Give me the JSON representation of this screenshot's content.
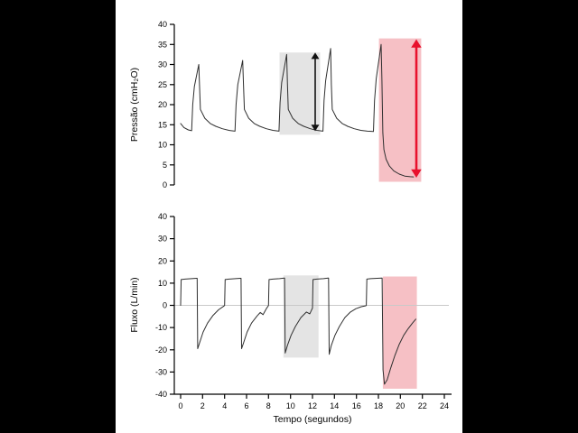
{
  "colors": {
    "background": "#000000",
    "panel": "#ffffff",
    "trace": "#2f2f2f",
    "axis": "#000000",
    "zero_line": "#c9c9c9",
    "gray_highlight": "#e4e4e4",
    "pink_highlight": "#f6c0c5",
    "red_accent": "#e8112d",
    "black_accent": "#111111"
  },
  "chart_data": [
    {
      "type": "line",
      "name": "pressure-plot",
      "title": "",
      "ylabel": "Pressão (cmH₂O)",
      "xlabel": "",
      "ylim": [
        0,
        40
      ],
      "yticks": [
        0,
        5,
        10,
        15,
        20,
        25,
        30,
        35,
        40
      ],
      "xlim": [
        0,
        24
      ],
      "xticks": null,
      "zero_line": false,
      "grid": false,
      "highlights": [
        {
          "color": "#e4e4e4",
          "x0": 9.0,
          "x1": 12.7,
          "y0": 12.5,
          "y1": 33.0
        },
        {
          "color": "#f6c0c5",
          "x0": 18.05,
          "x1": 21.9,
          "y0": 0.8,
          "y1": 36.5
        }
      ],
      "arrows": [
        {
          "color": "#111111",
          "x": 12.25,
          "y0": 13.4,
          "y1": 33.0,
          "width": 1.6
        },
        {
          "color": "#e8112d",
          "x": 21.45,
          "y0": 1.8,
          "y1": 36.3,
          "width": 2.6
        }
      ],
      "series": [
        {
          "name": "pressao",
          "points": [
            [
              0,
              15.3
            ],
            [
              0.3,
              14.3
            ],
            [
              0.7,
              13.7
            ],
            [
              1.0,
              13.5
            ],
            [
              1.1,
              20
            ],
            [
              1.25,
              24.5
            ],
            [
              1.65,
              30
            ],
            [
              1.72,
              25
            ],
            [
              1.8,
              18.8
            ],
            [
              2.2,
              16.6
            ],
            [
              2.7,
              15.3
            ],
            [
              3.2,
              14.6
            ],
            [
              3.8,
              14.0
            ],
            [
              4.4,
              13.6
            ],
            [
              4.95,
              13.4
            ],
            [
              5.05,
              20
            ],
            [
              5.2,
              25
            ],
            [
              5.65,
              31
            ],
            [
              5.72,
              25
            ],
            [
              5.8,
              18.8
            ],
            [
              6.2,
              16.6
            ],
            [
              6.7,
              15.3
            ],
            [
              7.2,
              14.6
            ],
            [
              7.8,
              14.0
            ],
            [
              8.4,
              13.6
            ],
            [
              8.95,
              13.4
            ],
            [
              9.05,
              20.5
            ],
            [
              9.2,
              25.5
            ],
            [
              9.65,
              32.5
            ],
            [
              9.72,
              25
            ],
            [
              9.8,
              18.8
            ],
            [
              10.2,
              16.6
            ],
            [
              10.7,
              15.3
            ],
            [
              11.2,
              14.6
            ],
            [
              11.8,
              14.0
            ],
            [
              12.4,
              13.6
            ],
            [
              12.95,
              13.4
            ],
            [
              13.05,
              21
            ],
            [
              13.2,
              26
            ],
            [
              13.65,
              34
            ],
            [
              13.72,
              25
            ],
            [
              13.8,
              18.8
            ],
            [
              14.2,
              16.6
            ],
            [
              14.7,
              15.3
            ],
            [
              15.2,
              14.6
            ],
            [
              15.8,
              14.0
            ],
            [
              16.4,
              13.6
            ],
            [
              17.0,
              13.4
            ],
            [
              17.55,
              13.3
            ],
            [
              17.65,
              21
            ],
            [
              17.8,
              26.5
            ],
            [
              18.25,
              35
            ],
            [
              18.32,
              26
            ],
            [
              18.4,
              13
            ],
            [
              18.5,
              8.8
            ],
            [
              18.7,
              6.4
            ],
            [
              19.0,
              4.7
            ],
            [
              19.4,
              3.5
            ],
            [
              19.9,
              2.7
            ],
            [
              20.4,
              2.2
            ],
            [
              20.9,
              2.05
            ],
            [
              21.2,
              2.0
            ]
          ]
        }
      ]
    },
    {
      "type": "line",
      "name": "flow-plot",
      "title": "",
      "ylabel": "Fluxo (L/min)",
      "xlabel": "Tempo (segundos)",
      "ylim": [
        -40,
        40
      ],
      "yticks": [
        -40,
        -30,
        -20,
        -10,
        0,
        10,
        20,
        30,
        40
      ],
      "xlim": [
        0,
        24
      ],
      "xticks": [
        0,
        2,
        4,
        6,
        8,
        10,
        12,
        14,
        16,
        18,
        20,
        22,
        24
      ],
      "zero_line": true,
      "grid": false,
      "highlights": [
        {
          "color": "#e4e4e4",
          "x0": 9.35,
          "x1": 12.55,
          "y0": -23.5,
          "y1": 13.5
        },
        {
          "color": "#f6c0c5",
          "x0": 18.4,
          "x1": 21.5,
          "y0": -37.5,
          "y1": 13.0
        }
      ],
      "arrows": [],
      "series": [
        {
          "name": "fluxo",
          "points": [
            [
              0,
              0
            ],
            [
              0.05,
              11.6
            ],
            [
              0.4,
              11.8
            ],
            [
              1.0,
              12.0
            ],
            [
              1.45,
              12.2
            ],
            [
              1.5,
              12.2
            ],
            [
              1.55,
              -19.5
            ],
            [
              1.75,
              -16.5
            ],
            [
              2.05,
              -12
            ],
            [
              2.45,
              -8
            ],
            [
              2.95,
              -4.5
            ],
            [
              3.45,
              -2
            ],
            [
              3.95,
              -0.3
            ],
            [
              4.0,
              0
            ],
            [
              4.05,
              11.6
            ],
            [
              4.4,
              11.8
            ],
            [
              5.0,
              12.0
            ],
            [
              5.45,
              12.2
            ],
            [
              5.5,
              12.2
            ],
            [
              5.55,
              -19.5
            ],
            [
              5.75,
              -16.5
            ],
            [
              6.05,
              -12
            ],
            [
              6.45,
              -8
            ],
            [
              6.95,
              -4.8
            ],
            [
              7.25,
              -3.2
            ],
            [
              7.5,
              -4.2
            ],
            [
              7.8,
              -1.5
            ],
            [
              7.98,
              -0.2
            ],
            [
              8.0,
              0
            ],
            [
              8.05,
              11.6
            ],
            [
              8.4,
              11.8
            ],
            [
              9.0,
              12.0
            ],
            [
              9.42,
              12.3
            ],
            [
              9.46,
              12.3
            ],
            [
              9.52,
              -21.5
            ],
            [
              9.72,
              -18
            ],
            [
              10.05,
              -13.5
            ],
            [
              10.45,
              -9.5
            ],
            [
              10.95,
              -5.5
            ],
            [
              11.45,
              -3
            ],
            [
              11.75,
              -3.8
            ],
            [
              12.0,
              -1.2
            ],
            [
              12.05,
              11.6
            ],
            [
              12.4,
              11.8
            ],
            [
              13.0,
              12.0
            ],
            [
              13.42,
              12.3
            ],
            [
              13.46,
              12.3
            ],
            [
              13.52,
              -22
            ],
            [
              13.72,
              -18
            ],
            [
              14.05,
              -13.5
            ],
            [
              14.45,
              -9.5
            ],
            [
              14.95,
              -5.5
            ],
            [
              15.45,
              -3
            ],
            [
              15.95,
              -1.5
            ],
            [
              16.45,
              -0.6
            ],
            [
              16.85,
              -0.2
            ],
            [
              16.9,
              0
            ],
            [
              16.95,
              11.8
            ],
            [
              17.3,
              12.0
            ],
            [
              18.3,
              12.3
            ],
            [
              18.34,
              12.3
            ],
            [
              18.42,
              -29
            ],
            [
              18.55,
              -35.5
            ],
            [
              18.8,
              -33.5
            ],
            [
              19.1,
              -28.5
            ],
            [
              19.5,
              -22.5
            ],
            [
              19.9,
              -17.5
            ],
            [
              20.3,
              -13.5
            ],
            [
              20.7,
              -10.5
            ],
            [
              21.1,
              -8
            ],
            [
              21.4,
              -6.2
            ]
          ]
        }
      ]
    }
  ]
}
